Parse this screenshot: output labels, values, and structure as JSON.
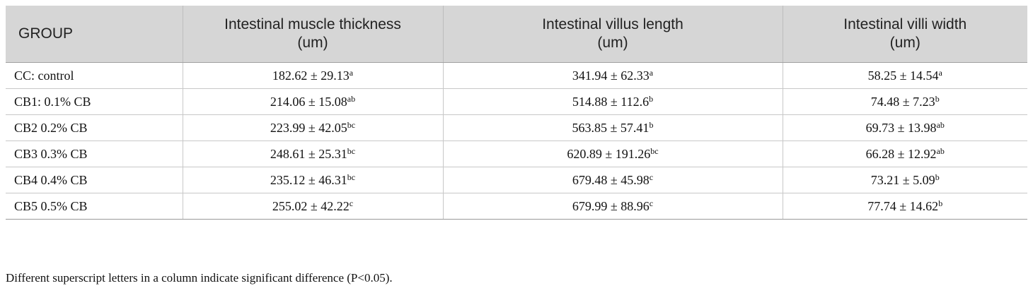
{
  "table": {
    "headers": [
      {
        "line1": "GROUP",
        "line2": ""
      },
      {
        "line1": "Intestinal muscle thickness",
        "line2": "(um)"
      },
      {
        "line1": "Intestinal villus length",
        "line2": "(um)"
      },
      {
        "line1": "Intestinal villi width",
        "line2": "(um)"
      }
    ],
    "rows": [
      {
        "group": "CC: control",
        "muscle": {
          "value": "182.62 ± 29.13",
          "sup": "a"
        },
        "length": {
          "value": "341.94 ± 62.33",
          "sup": "a"
        },
        "width": {
          "value": "58.25 ± 14.54",
          "sup": "a"
        }
      },
      {
        "group": "CB1: 0.1% CB",
        "muscle": {
          "value": "214.06 ± 15.08",
          "sup": "ab"
        },
        "length": {
          "value": "514.88 ± 112.6",
          "sup": "b"
        },
        "width": {
          "value": "74.48 ± 7.23",
          "sup": "b"
        }
      },
      {
        "group": "CB2 0.2% CB",
        "muscle": {
          "value": "223.99 ± 42.05",
          "sup": "bc"
        },
        "length": {
          "value": "563.85 ± 57.41",
          "sup": "b"
        },
        "width": {
          "value": "69.73 ± 13.98",
          "sup": "ab"
        }
      },
      {
        "group": "CB3 0.3% CB",
        "muscle": {
          "value": "248.61 ± 25.31",
          "sup": "bc"
        },
        "length": {
          "value": "620.89 ± 191.26",
          "sup": "bc"
        },
        "width": {
          "value": "66.28 ± 12.92",
          "sup": "ab"
        }
      },
      {
        "group": "CB4 0.4% CB",
        "muscle": {
          "value": "235.12 ± 46.31",
          "sup": "bc"
        },
        "length": {
          "value": "679.48 ± 45.98",
          "sup": "c"
        },
        "width": {
          "value": "73.21 ± 5.09",
          "sup": "b"
        }
      },
      {
        "group": "CB5 0.5% CB",
        "muscle": {
          "value": "255.02 ± 42.22",
          "sup": "c"
        },
        "length": {
          "value": "679.99 ± 88.96",
          "sup": "c"
        },
        "width": {
          "value": "77.74 ± 14.62",
          "sup": "b"
        }
      }
    ]
  },
  "footnote": "Different superscript letters in a column indicate significant difference (P<0.05)."
}
